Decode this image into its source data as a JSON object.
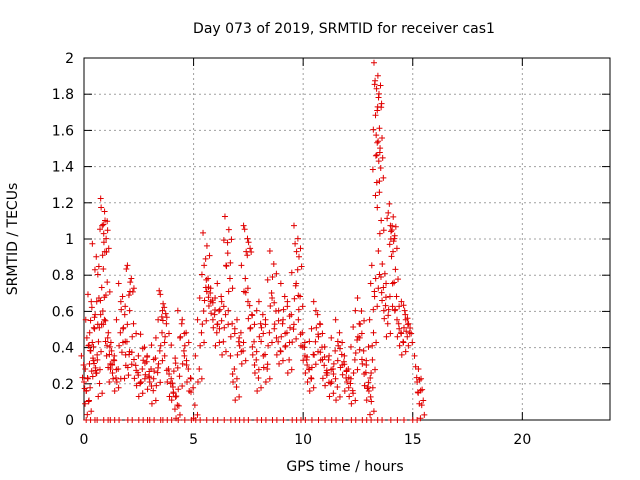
{
  "chart_data": {
    "type": "scatter",
    "title": "Day 073 of 2019, SRMTID for receiver cas1",
    "xlabel": "GPS time / hours",
    "ylabel": "SRMTID / TECUs",
    "xlim": [
      0,
      24
    ],
    "ylim": [
      0,
      2
    ],
    "xticks": [
      0,
      5,
      10,
      15,
      20
    ],
    "yticks": [
      0,
      0.2,
      0.4,
      0.6,
      0.8,
      1,
      1.2,
      1.4,
      1.6,
      1.8,
      2
    ],
    "grid": true,
    "marker": "+",
    "color": "#e00000",
    "series": [
      {
        "name": "SRMTID",
        "points": [
          [
            0.0,
            0.3
          ],
          [
            0.05,
            0.18
          ],
          [
            0.1,
            0.25
          ],
          [
            0.15,
            0.12
          ],
          [
            0.2,
            0.5
          ],
          [
            0.25,
            0.4
          ],
          [
            0.3,
            0.64
          ],
          [
            0.35,
            0.36
          ],
          [
            0.4,
            0.33
          ],
          [
            0.45,
            0.6
          ],
          [
            0.5,
            0.92
          ],
          [
            0.55,
            0.35
          ],
          [
            0.6,
            0.45
          ],
          [
            0.65,
            0.22
          ],
          [
            0.7,
            0.6
          ],
          [
            0.75,
            0.75
          ],
          [
            0.8,
            0.62
          ],
          [
            0.85,
            1.0
          ],
          [
            0.88,
            1.17
          ],
          [
            0.9,
            1.12
          ],
          [
            0.95,
            1.02
          ],
          [
            1.0,
            0.78
          ],
          [
            1.05,
            0.5
          ],
          [
            1.1,
            0.38
          ],
          [
            1.15,
            0.3
          ],
          [
            1.2,
            0.4
          ],
          [
            1.3,
            0.35
          ],
          [
            1.4,
            0.25
          ],
          [
            1.5,
            0.3
          ],
          [
            1.6,
            0.5
          ],
          [
            1.7,
            0.7
          ],
          [
            1.8,
            0.6
          ],
          [
            1.85,
            0.32
          ],
          [
            1.9,
            0.45
          ],
          [
            2.0,
            0.38
          ],
          [
            2.05,
            0.78
          ],
          [
            2.1,
            0.8
          ],
          [
            2.2,
            0.55
          ],
          [
            2.3,
            0.32
          ],
          [
            2.4,
            0.28
          ],
          [
            2.5,
            0.22
          ],
          [
            2.6,
            0.3
          ],
          [
            2.7,
            0.42
          ],
          [
            2.8,
            0.34
          ],
          [
            2.9,
            0.26
          ],
          [
            3.0,
            0.3
          ],
          [
            3.1,
            0.18
          ],
          [
            3.2,
            0.36
          ],
          [
            3.3,
            0.28
          ],
          [
            3.4,
            0.4
          ],
          [
            3.5,
            0.5
          ],
          [
            3.55,
            0.66
          ],
          [
            3.6,
            0.64
          ],
          [
            3.7,
            0.55
          ],
          [
            3.8,
            0.3
          ],
          [
            3.9,
            0.22
          ],
          [
            4.0,
            0.2
          ],
          [
            4.1,
            0.36
          ],
          [
            4.15,
            0.15
          ],
          [
            4.2,
            0.1
          ],
          [
            4.3,
            0.26
          ],
          [
            4.4,
            0.55
          ],
          [
            4.5,
            0.4
          ],
          [
            4.6,
            0.5
          ],
          [
            4.7,
            0.3
          ],
          [
            4.8,
            0.25
          ],
          [
            5.0,
            0.1
          ],
          [
            5.2,
            0.3
          ],
          [
            5.3,
            0.5
          ],
          [
            5.4,
            0.62
          ],
          [
            5.5,
            0.75
          ],
          [
            5.55,
            0.98
          ],
          [
            5.6,
            0.8
          ],
          [
            5.7,
            0.72
          ],
          [
            5.8,
            0.68
          ],
          [
            5.9,
            0.6
          ],
          [
            6.0,
            0.5
          ],
          [
            6.1,
            0.62
          ],
          [
            6.2,
            0.7
          ],
          [
            6.3,
            0.45
          ],
          [
            6.4,
            0.6
          ],
          [
            6.5,
            0.94
          ],
          [
            6.55,
            1.07
          ],
          [
            6.6,
            0.8
          ],
          [
            6.7,
            0.55
          ],
          [
            6.8,
            0.3
          ],
          [
            6.9,
            0.2
          ],
          [
            7.0,
            0.45
          ],
          [
            7.1,
            0.5
          ],
          [
            7.2,
            0.4
          ],
          [
            7.3,
            0.8
          ],
          [
            7.4,
            1.02
          ],
          [
            7.45,
            1.0
          ],
          [
            7.5,
            0.65
          ],
          [
            7.6,
            0.6
          ],
          [
            7.7,
            0.45
          ],
          [
            7.8,
            0.35
          ],
          [
            7.9,
            0.25
          ],
          [
            8.0,
            0.55
          ],
          [
            8.1,
            0.6
          ],
          [
            8.2,
            0.38
          ],
          [
            8.3,
            0.3
          ],
          [
            8.4,
            0.5
          ],
          [
            8.5,
            0.72
          ],
          [
            8.6,
            0.88
          ],
          [
            8.7,
            0.62
          ],
          [
            8.8,
            0.45
          ],
          [
            8.9,
            0.4
          ],
          [
            9.0,
            0.55
          ],
          [
            9.1,
            0.7
          ],
          [
            9.2,
            0.5
          ],
          [
            9.3,
            0.35
          ],
          [
            9.4,
            0.6
          ],
          [
            9.5,
            0.52
          ],
          [
            9.6,
            0.76
          ],
          [
            9.7,
            1.02
          ],
          [
            9.75,
            0.92
          ],
          [
            9.8,
            0.7
          ],
          [
            9.9,
            0.5
          ],
          [
            10.0,
            0.42
          ],
          [
            10.1,
            0.35
          ],
          [
            10.2,
            0.3
          ],
          [
            10.3,
            0.25
          ],
          [
            10.4,
            0.38
          ],
          [
            10.5,
            0.45
          ],
          [
            10.6,
            0.6
          ],
          [
            10.7,
            0.55
          ],
          [
            10.8,
            0.42
          ],
          [
            10.9,
            0.32
          ],
          [
            11.0,
            0.28
          ],
          [
            11.1,
            0.35
          ],
          [
            11.2,
            0.22
          ],
          [
            11.3,
            0.3
          ],
          [
            11.4,
            0.4
          ],
          [
            11.5,
            0.2
          ],
          [
            11.6,
            0.5
          ],
          [
            11.7,
            0.38
          ],
          [
            11.8,
            0.34
          ],
          [
            11.9,
            0.25
          ],
          [
            12.0,
            0.3
          ],
          [
            12.1,
            0.22
          ],
          [
            12.2,
            0.18
          ],
          [
            12.3,
            0.35
          ],
          [
            12.4,
            0.46
          ],
          [
            12.5,
            0.55
          ],
          [
            12.6,
            0.62
          ],
          [
            12.7,
            0.4
          ],
          [
            12.8,
            0.28
          ],
          [
            12.9,
            0.2
          ],
          [
            13.0,
            0.25
          ],
          [
            13.05,
            0.12
          ],
          [
            13.1,
            0.35
          ],
          [
            13.15,
            0.5
          ],
          [
            13.2,
            0.7
          ],
          [
            13.25,
            0.8
          ],
          [
            13.3,
            1.33
          ],
          [
            13.32,
            1.55
          ],
          [
            13.35,
            1.92
          ],
          [
            13.38,
            1.8
          ],
          [
            13.4,
            1.82
          ],
          [
            13.42,
            1.63
          ],
          [
            13.45,
            1.52
          ],
          [
            13.48,
            1.41
          ],
          [
            13.5,
            1.12
          ],
          [
            13.55,
            0.88
          ],
          [
            13.6,
            0.75
          ],
          [
            13.7,
            0.65
          ],
          [
            13.8,
            0.55
          ],
          [
            13.9,
            0.7
          ],
          [
            13.95,
            1.06
          ],
          [
            14.0,
            1.09
          ],
          [
            14.05,
            1.14
          ],
          [
            14.1,
            1.02
          ],
          [
            14.15,
            0.85
          ],
          [
            14.2,
            0.7
          ],
          [
            14.3,
            0.55
          ],
          [
            14.4,
            0.5
          ],
          [
            14.5,
            0.45
          ],
          [
            14.6,
            0.6
          ],
          [
            14.7,
            0.58
          ],
          [
            14.75,
            0.55
          ],
          [
            14.8,
            0.5
          ],
          [
            15.2,
            0.3
          ],
          [
            15.25,
            0.24
          ],
          [
            15.3,
            0.18
          ],
          [
            15.35,
            0.1
          ]
        ],
        "zero_points": [
          0.1,
          0.3,
          0.5,
          0.6,
          0.9,
          1.1,
          1.2,
          1.4,
          1.6,
          2.0,
          2.2,
          2.5,
          2.7,
          2.9,
          3.0,
          3.2,
          3.5,
          3.6,
          3.8,
          4.0,
          4.3,
          4.6,
          4.9,
          5.1,
          5.3,
          5.6,
          5.9,
          6.1,
          6.4,
          6.7,
          6.9,
          7.1,
          7.3,
          7.5,
          7.9,
          8.1,
          8.3,
          8.6,
          8.8,
          9.1,
          9.5,
          9.7,
          9.9,
          10.1,
          10.4,
          10.7,
          11.0,
          11.3,
          11.5,
          11.8,
          12.2,
          12.4,
          12.7,
          12.9,
          13.1,
          13.4,
          13.6,
          14.0,
          14.3,
          14.6,
          15.0,
          15.2
        ]
      }
    ]
  }
}
